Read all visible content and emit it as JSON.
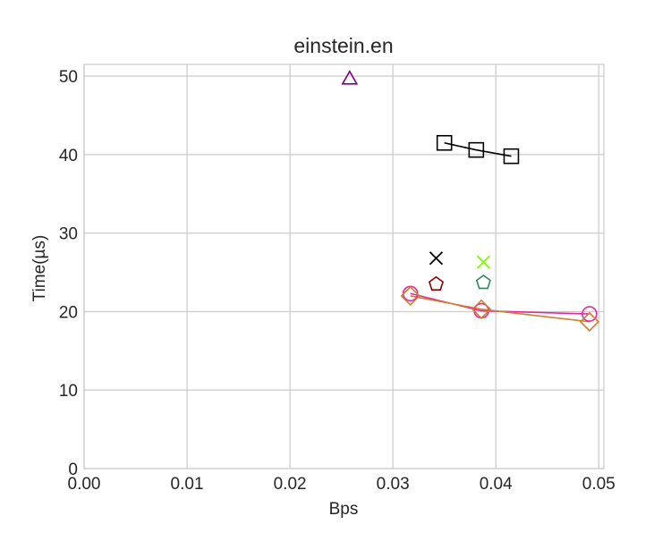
{
  "chart_data": {
    "type": "scatter",
    "title": "einstein.en",
    "xlabel": "Bps",
    "ylabel": "Time(µs)",
    "xlim": [
      0,
      0.0505
    ],
    "ylim": [
      0,
      51.5
    ],
    "xticks": [
      {
        "value": 0.0,
        "label": "0.00"
      },
      {
        "value": 0.01,
        "label": "0.01"
      },
      {
        "value": 0.02,
        "label": "0.02"
      },
      {
        "value": 0.03,
        "label": "0.03"
      },
      {
        "value": 0.04,
        "label": "0.04"
      },
      {
        "value": 0.05,
        "label": "0.05"
      }
    ],
    "yticks": [
      {
        "value": 0,
        "label": "0"
      },
      {
        "value": 10,
        "label": "10"
      },
      {
        "value": 20,
        "label": "20"
      },
      {
        "value": 30,
        "label": "30"
      },
      {
        "value": 40,
        "label": "40"
      },
      {
        "value": 50,
        "label": "50"
      }
    ],
    "grid": true,
    "legend": "none",
    "series": [
      {
        "marker": "triangle",
        "color": "#800080",
        "line": false,
        "points": [
          {
            "x": 0.0258,
            "y": 49.7
          }
        ]
      },
      {
        "marker": "square",
        "color": "#000000",
        "line": true,
        "points": [
          {
            "x": 0.035,
            "y": 41.5
          },
          {
            "x": 0.0381,
            "y": 40.6
          },
          {
            "x": 0.0415,
            "y": 39.8
          }
        ]
      },
      {
        "marker": "x",
        "color": "#000000",
        "line": false,
        "points": [
          {
            "x": 0.0342,
            "y": 26.8
          }
        ]
      },
      {
        "marker": "x",
        "color": "#7cfc00",
        "line": false,
        "points": [
          {
            "x": 0.0388,
            "y": 26.3
          }
        ]
      },
      {
        "marker": "pentagon",
        "color": "#8b0000",
        "line": false,
        "points": [
          {
            "x": 0.0342,
            "y": 23.5
          }
        ]
      },
      {
        "marker": "pentagon",
        "color": "#2e8b57",
        "line": false,
        "points": [
          {
            "x": 0.0388,
            "y": 23.7
          }
        ]
      },
      {
        "marker": "circle",
        "color": "#e8289e",
        "line": true,
        "points": [
          {
            "x": 0.0317,
            "y": 22.3
          },
          {
            "x": 0.0386,
            "y": 20.1
          },
          {
            "x": 0.0491,
            "y": 19.7
          }
        ]
      },
      {
        "marker": "diamond",
        "color": "#cd7f32",
        "line": true,
        "points": [
          {
            "x": 0.0317,
            "y": 22.0
          },
          {
            "x": 0.0386,
            "y": 20.3
          },
          {
            "x": 0.0491,
            "y": 18.7
          }
        ]
      }
    ]
  }
}
